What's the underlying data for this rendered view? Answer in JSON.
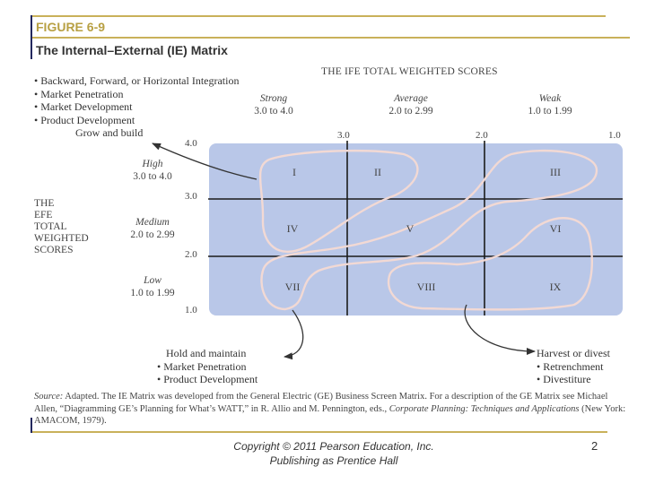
{
  "figure": {
    "label": "FIGURE 6-9",
    "title": "The Internal–External (IE) Matrix"
  },
  "strategies": {
    "grow": [
      "Backward, Forward, or Horizontal Integration",
      "Market Penetration",
      "Market Development",
      "Product Development"
    ],
    "grow_label": "Grow and build",
    "hold_label": "Hold and maintain",
    "hold": [
      "Market Penetration",
      "Product Development"
    ],
    "harvest_label": "Harvest or divest",
    "harvest": [
      "Retrenchment",
      "Divestiture"
    ]
  },
  "ife_axis": {
    "title": "THE IFE TOTAL WEIGHTED SCORES",
    "columns": [
      {
        "name": "Strong",
        "range": "3.0 to 4.0"
      },
      {
        "name": "Average",
        "range": "2.0 to 2.99"
      },
      {
        "name": "Weak",
        "range": "1.0 to 1.99"
      }
    ],
    "ticks": [
      "3.0",
      "2.0",
      "1.0"
    ]
  },
  "efe_axis": {
    "title": [
      "THE",
      "EFE",
      "TOTAL",
      "WEIGHTED",
      "SCORES"
    ],
    "rows": [
      {
        "name": "High",
        "range": "3.0 to 4.0"
      },
      {
        "name": "Medium",
        "range": "2.0 to 2.99"
      },
      {
        "name": "Low",
        "range": "1.0 to 1.99"
      }
    ],
    "ticks": [
      "4.0",
      "3.0",
      "2.0",
      "1.0"
    ]
  },
  "cells": [
    "I",
    "II",
    "III",
    "IV",
    "V",
    "VI",
    "VII",
    "VIII",
    "IX"
  ],
  "source": {
    "label": "Source:",
    "text_a": " Adapted. The IE Matrix was developed from the General Electric (GE) Business Screen Matrix. For a description of the GE Matrix see Michael Allen, “Diagramming GE’s Planning for What’s WATT,” in R. Allio and M. Pennington, eds., ",
    "italic": "Corporate Planning: Techniques and Applications",
    "text_b": " (New York: AMACOM, 1979)."
  },
  "footer": {
    "copyright_line1": "Copyright © 2011 Pearson Education, Inc.",
    "copyright_line2": "Publishing as Prentice Hall",
    "page_number": "2"
  },
  "colors": {
    "matrix_fill": "#b9c7e8",
    "grid_line": "#1b1b1b",
    "outline": "#f2d9d4",
    "rule_gold": "#c9b15a",
    "rule_navy": "#23285e"
  }
}
